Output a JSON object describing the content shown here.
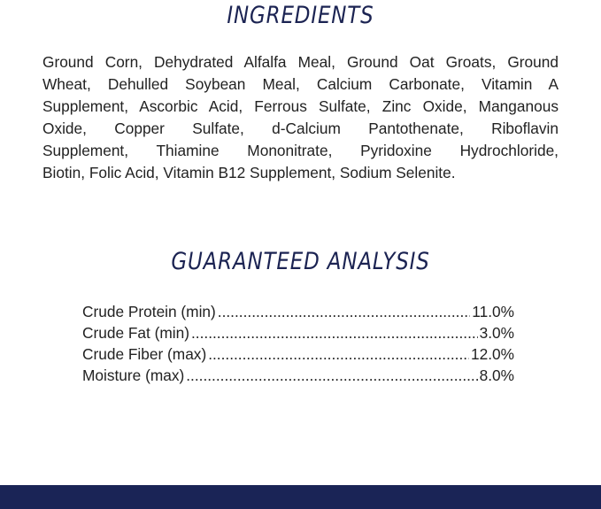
{
  "ingredients": {
    "title": "INGREDIENTS",
    "lines": [
      "Ground Corn, Dehydrated Alfalfa Meal, Ground Oat Groats, Ground",
      "Wheat, Dehulled Soybean Meal, Calcium Carbonate, Vitamin A",
      "Supplement, Ascorbic Acid, Ferrous Sulfate, Zinc Oxide, Manganous",
      "Oxide, Copper Sulfate, d-Calcium Pantothenate, Riboflavin",
      "Supplement, Thiamine Mononitrate, Pyridoxine Hydrochloride,",
      "Biotin, Folic Acid, Vitamin B12 Supplement, Sodium Selenite."
    ]
  },
  "analysis": {
    "title": "GUARANTEED ANALYSIS",
    "rows": [
      {
        "label": "Crude Protein (min)",
        "value": "11.0%"
      },
      {
        "label": "Crude Fat (min)",
        "value": "3.0%"
      },
      {
        "label": "Crude Fiber (max)",
        "value": "12.0%"
      },
      {
        "label": "Moisture (max)",
        "value": "8.0%"
      }
    ]
  },
  "colors": {
    "heading": "#1b2352",
    "footer_bar": "#1a2456"
  }
}
